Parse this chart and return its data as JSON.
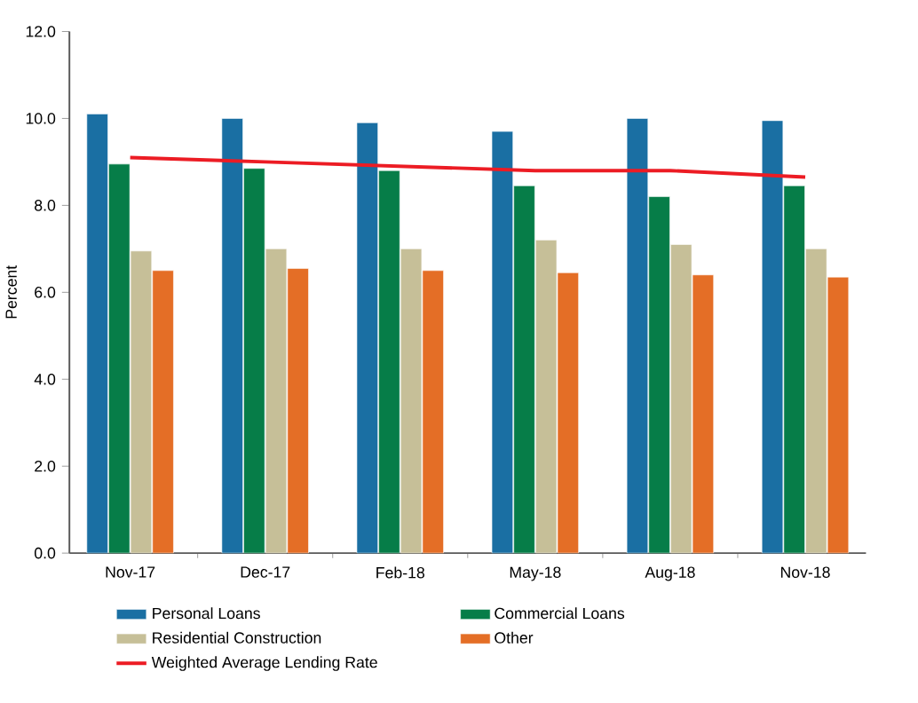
{
  "chart_data": {
    "type": "bar",
    "ylabel": "Percent",
    "categories": [
      "Nov-17",
      "Dec-17",
      "Feb-18",
      "May-18",
      "Aug-18",
      "Nov-18"
    ],
    "series": [
      {
        "name": "Personal Loans",
        "color": "#1a6fa3",
        "values": [
          10.1,
          10.0,
          9.9,
          9.7,
          10.0,
          9.95
        ]
      },
      {
        "name": "Commercial Loans",
        "color": "#067d48",
        "values": [
          8.95,
          8.85,
          8.8,
          8.45,
          8.2,
          8.45
        ]
      },
      {
        "name": "Residential Construction",
        "color": "#c6bf98",
        "values": [
          6.95,
          7.0,
          7.0,
          7.2,
          7.1,
          7.0
        ]
      },
      {
        "name": "Other",
        "color": "#e46e26",
        "values": [
          6.5,
          6.55,
          6.5,
          6.45,
          6.4,
          6.35
        ]
      },
      {
        "name": "Weighted Average Lending Rate",
        "type": "line",
        "color": "#ec1c24",
        "values": [
          9.1,
          9.0,
          8.9,
          8.8,
          8.8,
          8.65
        ]
      }
    ],
    "ylim": [
      0,
      12
    ],
    "yticks": [
      {
        "value": 0,
        "label": "0.0"
      },
      {
        "value": 2,
        "label": "2.0"
      },
      {
        "value": 4,
        "label": "4.0"
      },
      {
        "value": 6,
        "label": "6.0"
      },
      {
        "value": 8,
        "label": "8.0"
      },
      {
        "value": 10,
        "label": "10.0"
      },
      {
        "value": 12,
        "label": "12.0"
      }
    ],
    "grid": false,
    "legend": "bottom"
  }
}
